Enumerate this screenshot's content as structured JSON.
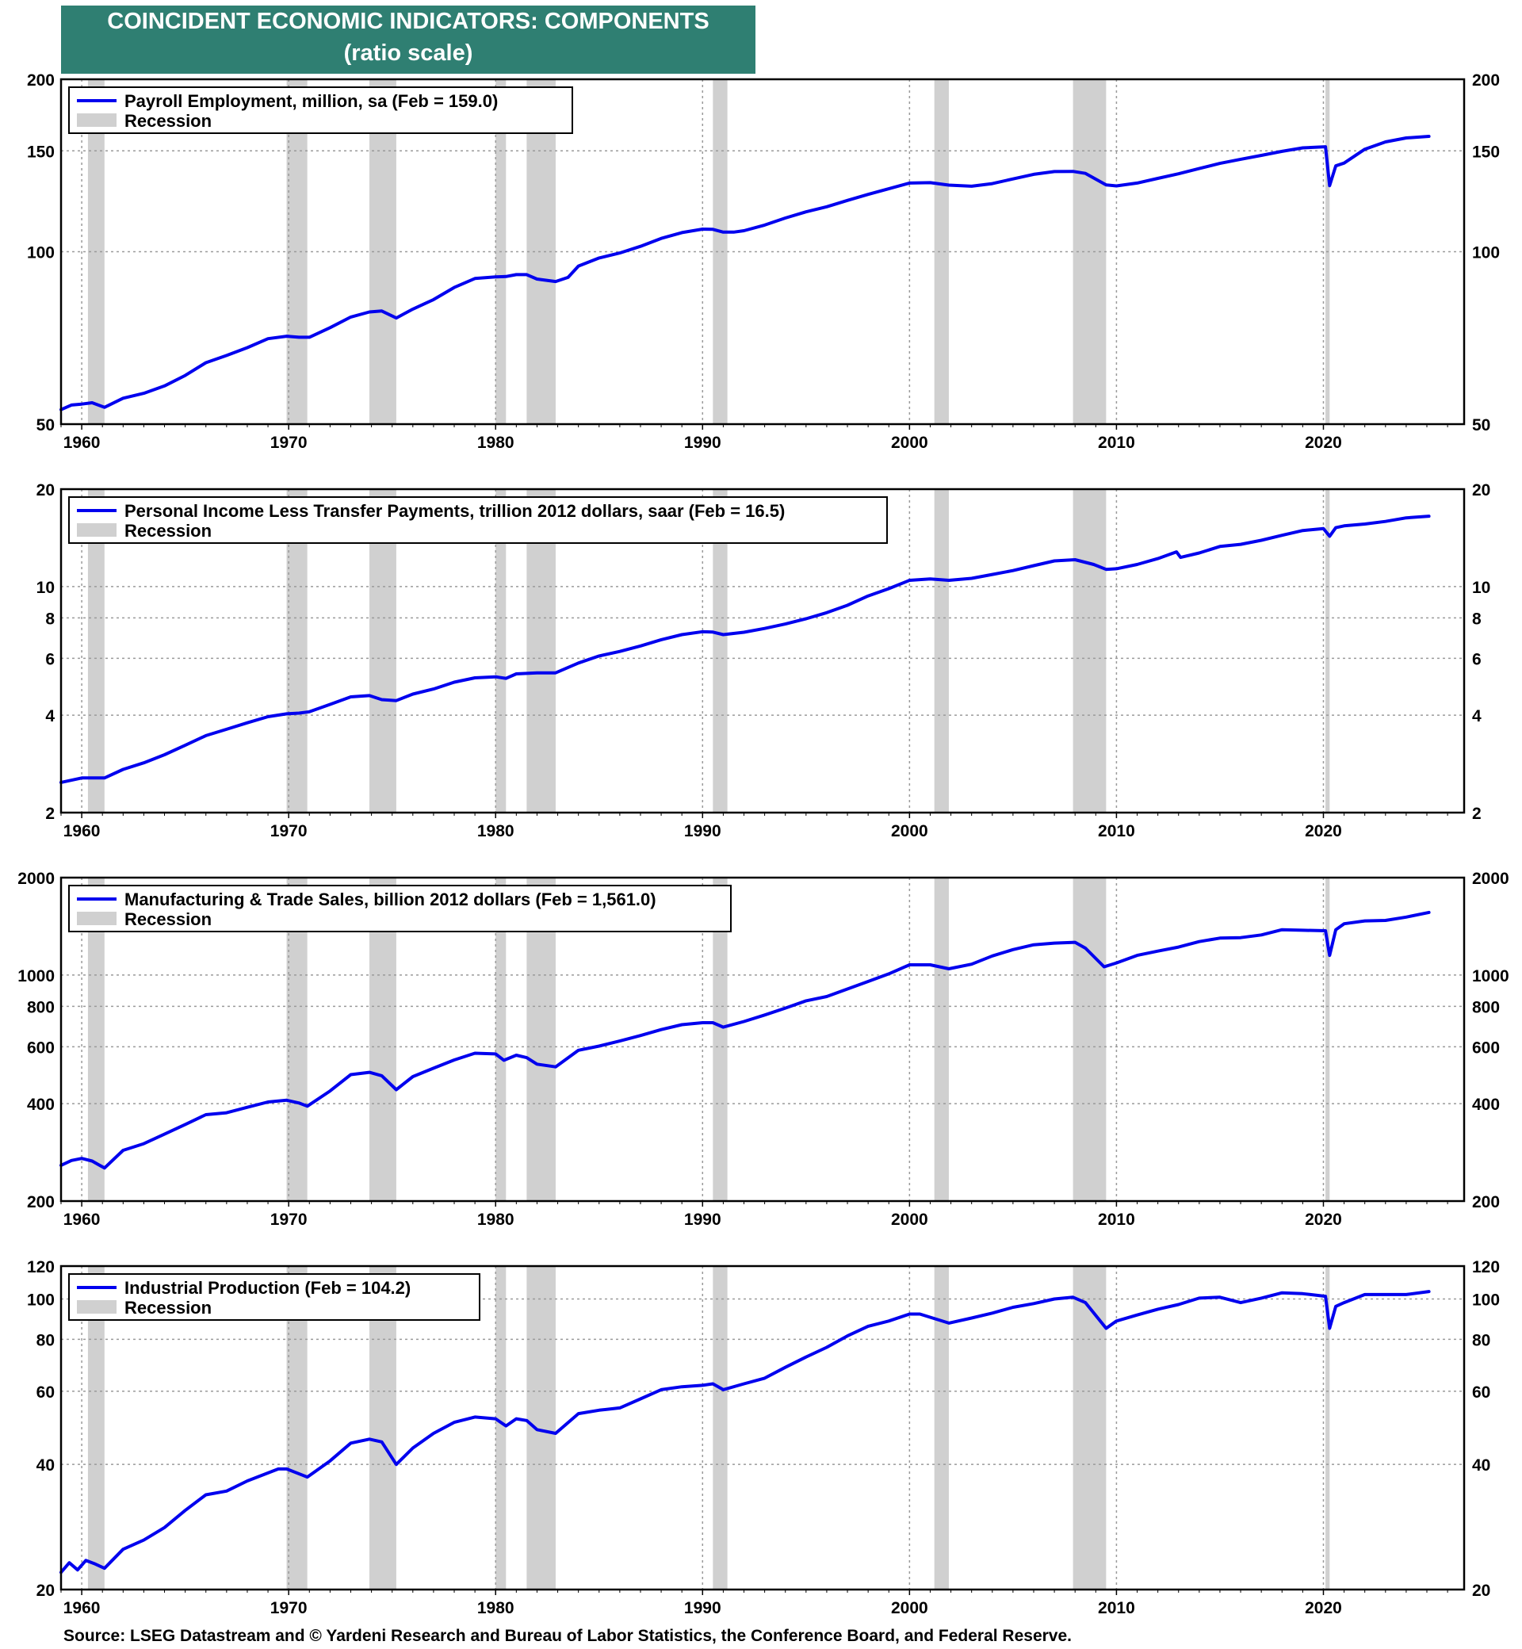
{
  "header": {
    "title": "COINCIDENT ECONOMIC INDICATORS: COMPONENTS",
    "subtitle": "(ratio scale)"
  },
  "footer": {
    "source": "Source: LSEG Datastream and © Yardeni Research and Bureau of Labor Statistics, the Conference Board, and Federal Reserve."
  },
  "colors": {
    "line": "#0000ee",
    "recession": "#d0d0d0",
    "grid": "#9a9a9a",
    "title_bg": "#2f7f72"
  },
  "recessions": [
    [
      1960.3,
      1961.1
    ],
    [
      1969.9,
      1970.9
    ],
    [
      1973.9,
      1975.2
    ],
    [
      1980.0,
      1980.5
    ],
    [
      1981.5,
      1982.9
    ],
    [
      1990.5,
      1991.2
    ],
    [
      2001.2,
      2001.9
    ],
    [
      2007.9,
      2009.5
    ],
    [
      2020.1,
      2020.3
    ]
  ],
  "chart_data": [
    {
      "type": "line",
      "scale": "log",
      "legend_placement": "top-left",
      "grid": true,
      "legend": [
        "Payroll Employment, million, sa (Feb = 159.0)",
        "Recession"
      ],
      "xlim": [
        1959,
        2026.8
      ],
      "x_ticks": [
        "1960",
        "1970",
        "1980",
        "1990",
        "2000",
        "2010",
        "2020"
      ],
      "ylim": [
        50,
        200
      ],
      "y_ticks": [
        50,
        100,
        150,
        200
      ],
      "series": [
        {
          "x": [
            1959.0,
            1959.5,
            1960.0,
            1960.5,
            1961.1,
            1962.0,
            1963.0,
            1964.0,
            1965.0,
            1966.0,
            1967.0,
            1968.0,
            1969.0,
            1969.9,
            1970.5,
            1971.0,
            1972.0,
            1973.0,
            1973.9,
            1974.5,
            1975.2,
            1976.0,
            1977.0,
            1978.0,
            1979.0,
            1980.0,
            1980.5,
            1981.0,
            1981.5,
            1982.0,
            1982.9,
            1983.5,
            1984.0,
            1985.0,
            1986.0,
            1987.0,
            1988.0,
            1989.0,
            1990.0,
            1990.5,
            1991.0,
            1991.5,
            1992.0,
            1993.0,
            1994.0,
            1995.0,
            1996.0,
            1997.0,
            1998.0,
            1999.0,
            2000.0,
            2001.0,
            2001.9,
            2003.0,
            2004.0,
            2005.0,
            2006.0,
            2007.0,
            2007.9,
            2008.5,
            2009.5,
            2010.0,
            2011.0,
            2012.0,
            2013.0,
            2014.0,
            2015.0,
            2016.0,
            2017.0,
            2018.0,
            2019.0,
            2020.1,
            2020.3,
            2020.6,
            2021.0,
            2022.0,
            2023.0,
            2024.0,
            2025.1
          ],
          "values": [
            53.0,
            54.0,
            54.2,
            54.5,
            53.5,
            55.5,
            56.6,
            58.3,
            60.8,
            64.0,
            65.9,
            68.0,
            70.5,
            71.2,
            70.9,
            70.9,
            73.7,
            76.9,
            78.5,
            78.8,
            76.6,
            79.4,
            82.5,
            86.6,
            89.8,
            90.4,
            90.5,
            91.2,
            91.2,
            89.6,
            88.7,
            90.2,
            94.4,
            97.5,
            99.5,
            102.2,
            105.5,
            108.0,
            109.5,
            109.4,
            108.2,
            108.2,
            108.8,
            111.3,
            114.5,
            117.4,
            119.8,
            122.9,
            125.9,
            128.8,
            131.8,
            132.0,
            130.7,
            130.1,
            131.5,
            134.0,
            136.5,
            138.0,
            138.1,
            137.0,
            130.8,
            130.3,
            131.8,
            134.3,
            136.8,
            139.7,
            142.6,
            145.0,
            147.3,
            149.7,
            151.8,
            152.5,
            130.4,
            141.2,
            142.8,
            151.0,
            155.5,
            158.0,
            159.0
          ]
        }
      ]
    },
    {
      "type": "line",
      "scale": "log",
      "legend_placement": "top-left",
      "grid": true,
      "legend": [
        "Personal Income Less Transfer Payments, trillion 2012 dollars, saar (Feb = 16.5)",
        "Recession"
      ],
      "xlim": [
        1959,
        2026.8
      ],
      "x_ticks": [
        "1960",
        "1970",
        "1980",
        "1990",
        "2000",
        "2010",
        "2020"
      ],
      "ylim": [
        2,
        20
      ],
      "y_ticks": [
        2,
        4,
        6,
        8,
        10,
        20
      ],
      "series": [
        {
          "x": [
            1959.0,
            1960.0,
            1961.1,
            1962.0,
            1963.0,
            1964.0,
            1965.0,
            1966.0,
            1967.0,
            1968.0,
            1969.0,
            1969.9,
            1970.5,
            1971.0,
            1972.0,
            1973.0,
            1973.9,
            1974.5,
            1975.2,
            1976.0,
            1977.0,
            1978.0,
            1979.0,
            1980.0,
            1980.5,
            1981.0,
            1982.0,
            1982.9,
            1984.0,
            1985.0,
            1986.0,
            1987.0,
            1988.0,
            1989.0,
            1990.0,
            1990.5,
            1991.0,
            1992.0,
            1993.0,
            1994.0,
            1995.0,
            1996.0,
            1997.0,
            1998.0,
            1999.0,
            2000.0,
            2001.0,
            2001.9,
            2003.0,
            2004.0,
            2005.0,
            2006.0,
            2007.0,
            2008.0,
            2008.9,
            2009.5,
            2010.0,
            2011.0,
            2012.0,
            2012.9,
            2013.1,
            2014.0,
            2015.0,
            2016.0,
            2017.0,
            2018.0,
            2019.0,
            2020.0,
            2020.3,
            2020.6,
            2021.0,
            2022.0,
            2023.0,
            2024.0,
            2025.1
          ],
          "values": [
            2.48,
            2.56,
            2.56,
            2.72,
            2.85,
            3.02,
            3.23,
            3.46,
            3.62,
            3.79,
            3.96,
            4.04,
            4.06,
            4.1,
            4.32,
            4.56,
            4.6,
            4.47,
            4.44,
            4.65,
            4.82,
            5.06,
            5.22,
            5.26,
            5.2,
            5.37,
            5.41,
            5.41,
            5.8,
            6.1,
            6.3,
            6.55,
            6.85,
            7.1,
            7.25,
            7.23,
            7.1,
            7.22,
            7.42,
            7.66,
            7.95,
            8.3,
            8.75,
            9.35,
            9.85,
            10.45,
            10.55,
            10.45,
            10.6,
            10.9,
            11.2,
            11.6,
            12.0,
            12.1,
            11.7,
            11.3,
            11.35,
            11.7,
            12.2,
            12.8,
            12.3,
            12.7,
            13.3,
            13.5,
            13.9,
            14.4,
            14.9,
            15.1,
            14.3,
            15.2,
            15.4,
            15.6,
            15.9,
            16.3,
            16.5
          ]
        }
      ]
    },
    {
      "type": "line",
      "scale": "log",
      "legend_placement": "top-left",
      "grid": true,
      "legend": [
        "Manufacturing & Trade Sales, billion 2012 dollars (Feb = 1,561.0)",
        "Recession"
      ],
      "xlim": [
        1959,
        2026.8
      ],
      "x_ticks": [
        "1960",
        "1970",
        "1980",
        "1990",
        "2000",
        "2010",
        "2020"
      ],
      "ylim": [
        200,
        2000
      ],
      "y_ticks": [
        200,
        400,
        600,
        800,
        1000,
        2000
      ],
      "series": [
        {
          "x": [
            1959.0,
            1959.5,
            1960.0,
            1960.5,
            1961.1,
            1962.0,
            1963.0,
            1964.0,
            1965.0,
            1966.0,
            1967.0,
            1968.0,
            1969.0,
            1969.9,
            1970.5,
            1970.9,
            1972.0,
            1973.0,
            1973.9,
            1974.5,
            1975.2,
            1976.0,
            1977.0,
            1978.0,
            1979.0,
            1980.0,
            1980.4,
            1981.0,
            1981.5,
            1982.0,
            1982.9,
            1984.0,
            1985.0,
            1986.0,
            1987.0,
            1988.0,
            1989.0,
            1990.0,
            1990.5,
            1991.0,
            1992.0,
            1993.0,
            1994.0,
            1995.0,
            1996.0,
            1997.0,
            1998.0,
            1999.0,
            2000.0,
            2001.0,
            2001.9,
            2003.0,
            2004.0,
            2005.0,
            2006.0,
            2007.0,
            2008.0,
            2008.5,
            2009.4,
            2010.0,
            2011.0,
            2012.0,
            2013.0,
            2014.0,
            2015.0,
            2016.0,
            2017.0,
            2018.0,
            2019.0,
            2020.1,
            2020.3,
            2020.6,
            2021.0,
            2022.0,
            2023.0,
            2024.0,
            2025.1
          ],
          "values": [
            258,
            267,
            271,
            266,
            253,
            287,
            301,
            322,
            345,
            370,
            375,
            390,
            405,
            410,
            402,
            393,
            438,
            492,
            500,
            488,
            442,
            485,
            515,
            546,
            573,
            570,
            545,
            565,
            555,
            530,
            520,
            585,
            603,
            625,
            650,
            678,
            702,
            712,
            712,
            690,
            718,
            752,
            790,
            832,
            858,
            905,
            955,
            1008,
            1075,
            1075,
            1045,
            1080,
            1145,
            1198,
            1240,
            1255,
            1262,
            1210,
            1060,
            1090,
            1150,
            1185,
            1220,
            1268,
            1300,
            1305,
            1330,
            1380,
            1375,
            1370,
            1150,
            1380,
            1440,
            1470,
            1475,
            1510,
            1561
          ]
        }
      ]
    },
    {
      "type": "line",
      "scale": "log",
      "legend_placement": "top-left",
      "grid": true,
      "legend": [
        "Industrial Production (Feb = 104.2)",
        "Recession"
      ],
      "xlim": [
        1959,
        2026.8
      ],
      "x_ticks": [
        "1960",
        "1970",
        "1980",
        "1990",
        "2000",
        "2010",
        "2020"
      ],
      "ylim": [
        20,
        120
      ],
      "y_ticks": [
        20,
        40,
        60,
        80,
        100,
        120
      ],
      "series": [
        {
          "x": [
            1959.0,
            1959.4,
            1959.8,
            1960.2,
            1960.6,
            1961.1,
            1962.0,
            1963.0,
            1964.0,
            1965.0,
            1966.0,
            1967.0,
            1968.0,
            1969.5,
            1969.9,
            1970.9,
            1972.0,
            1973.0,
            1973.9,
            1974.5,
            1975.2,
            1976.0,
            1977.0,
            1978.0,
            1979.0,
            1980.0,
            1980.5,
            1981.0,
            1981.5,
            1982.0,
            1982.9,
            1984.0,
            1985.0,
            1986.0,
            1987.0,
            1988.0,
            1989.0,
            1990.0,
            1990.5,
            1991.0,
            1992.0,
            1993.0,
            1994.0,
            1995.0,
            1996.0,
            1997.0,
            1998.0,
            1999.0,
            2000.0,
            2000.5,
            2001.9,
            2003.0,
            2004.0,
            2005.0,
            2006.0,
            2007.0,
            2007.9,
            2008.5,
            2009.5,
            2010.0,
            2011.0,
            2012.0,
            2013.0,
            2014.0,
            2015.0,
            2016.0,
            2017.0,
            2018.0,
            2019.0,
            2020.1,
            2020.3,
            2020.6,
            2021.0,
            2022.0,
            2023.0,
            2024.0,
            2025.1
          ],
          "values": [
            22.0,
            23.2,
            22.3,
            23.5,
            23.1,
            22.5,
            25.0,
            26.3,
            28.2,
            31.0,
            33.8,
            34.5,
            36.5,
            39.0,
            39.0,
            37.3,
            40.8,
            45.0,
            46.0,
            45.3,
            40.0,
            43.8,
            47.5,
            50.5,
            52.0,
            51.5,
            49.5,
            51.5,
            51.0,
            48.5,
            47.5,
            53.0,
            54.0,
            54.7,
            57.5,
            60.5,
            61.5,
            62.0,
            62.5,
            60.5,
            62.5,
            64.5,
            68.5,
            72.5,
            76.5,
            81.5,
            86.0,
            88.5,
            92.0,
            92.0,
            87.5,
            90.0,
            92.5,
            95.5,
            97.5,
            100.0,
            101.0,
            98.0,
            85.0,
            88.5,
            91.5,
            94.5,
            97.0,
            100.5,
            101.0,
            98.0,
            100.5,
            103.5,
            103.0,
            101.5,
            85.0,
            96.0,
            98.0,
            102.5,
            102.5,
            102.5,
            104.2
          ]
        }
      ]
    }
  ]
}
